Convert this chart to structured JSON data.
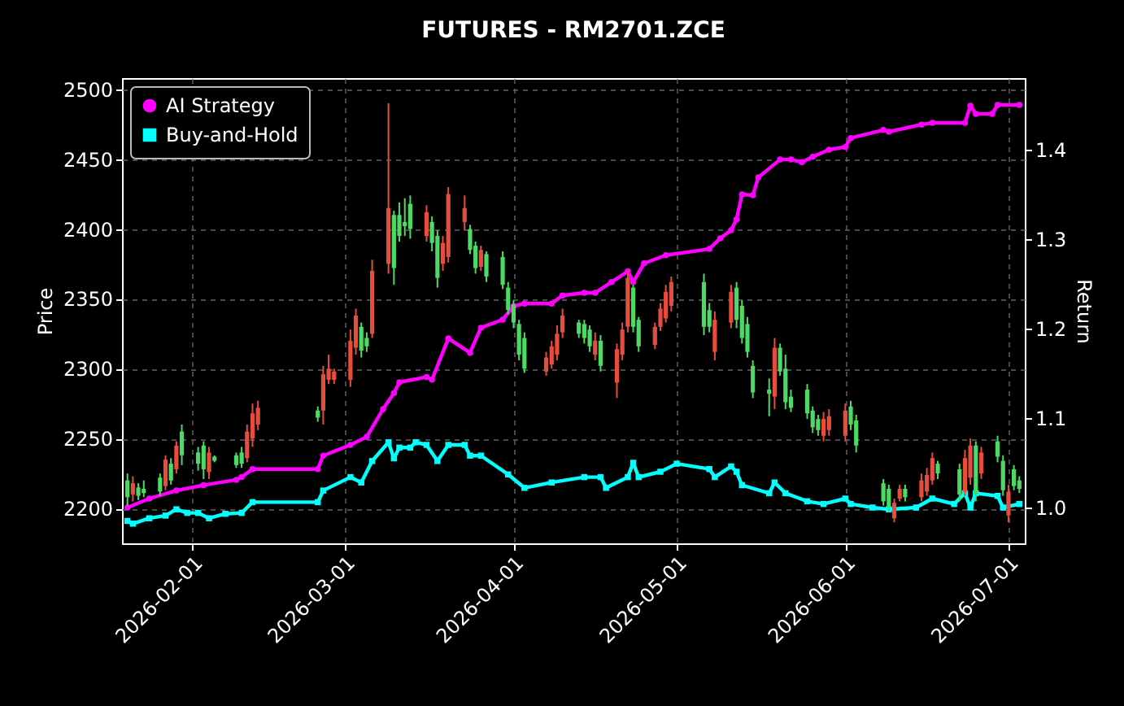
{
  "chart_data": {
    "type": "candlestick",
    "title": "FUTURES - RM2701.ZCE",
    "ylabel": "Price",
    "y2label": "Return",
    "x": [
      "2026-01-20",
      "2026-01-21",
      "2026-01-22",
      "2026-01-23",
      "2026-01-26",
      "2026-01-27",
      "2026-01-28",
      "2026-01-29",
      "2026-01-30",
      "2026-02-02",
      "2026-02-03",
      "2026-02-04",
      "2026-02-05",
      "2026-02-09",
      "2026-02-10",
      "2026-02-11",
      "2026-02-12",
      "2026-02-13",
      "2026-02-24",
      "2026-02-25",
      "2026-02-26",
      "2026-02-27",
      "2026-03-02",
      "2026-03-03",
      "2026-03-04",
      "2026-03-05",
      "2026-03-06",
      "2026-03-09",
      "2026-03-10",
      "2026-03-11",
      "2026-03-12",
      "2026-03-13",
      "2026-03-16",
      "2026-03-17",
      "2026-03-18",
      "2026-03-19",
      "2026-03-20",
      "2026-03-23",
      "2026-03-24",
      "2026-03-25",
      "2026-03-26",
      "2026-03-27",
      "2026-03-30",
      "2026-03-31",
      "2026-04-01",
      "2026-04-02",
      "2026-04-03",
      "2026-04-07",
      "2026-04-08",
      "2026-04-09",
      "2026-04-10",
      "2026-04-13",
      "2026-04-14",
      "2026-04-15",
      "2026-04-16",
      "2026-04-17",
      "2026-04-20",
      "2026-04-21",
      "2026-04-22",
      "2026-04-23",
      "2026-04-24",
      "2026-04-27",
      "2026-04-28",
      "2026-04-29",
      "2026-04-30",
      "2026-05-06",
      "2026-05-07",
      "2026-05-08",
      "2026-05-11",
      "2026-05-12",
      "2026-05-13",
      "2026-05-14",
      "2026-05-15",
      "2026-05-18",
      "2026-05-19",
      "2026-05-20",
      "2026-05-21",
      "2026-05-22",
      "2026-05-25",
      "2026-05-26",
      "2026-05-27",
      "2026-05-28",
      "2026-05-29",
      "2026-06-01",
      "2026-06-02",
      "2026-06-03",
      "2026-06-08",
      "2026-06-09",
      "2026-06-10",
      "2026-06-11",
      "2026-06-12",
      "2026-06-15",
      "2026-06-16",
      "2026-06-17",
      "2026-06-18",
      "2026-06-22",
      "2026-06-23",
      "2026-06-24",
      "2026-06-25",
      "2026-06-26",
      "2026-06-29",
      "2026-06-30",
      "2026-07-01",
      "2026-07-02",
      "2026-07-03"
    ],
    "ohlc": [
      [
        2220,
        2225,
        2202,
        2208
      ],
      [
        2210,
        2223,
        2205,
        2218
      ],
      [
        2215,
        2218,
        2206,
        2209
      ],
      [
        2214,
        2220,
        2208,
        2211
      ],
      [
        2222,
        2225,
        2209,
        2212
      ],
      [
        2216,
        2238,
        2213,
        2235
      ],
      [
        2232,
        2236,
        2217,
        2220
      ],
      [
        2228,
        2248,
        2225,
        2245
      ],
      [
        2255,
        2260,
        2231,
        2238
      ],
      [
        2240,
        2244,
        2227,
        2232
      ],
      [
        2245,
        2248,
        2221,
        2228
      ],
      [
        2226,
        2244,
        2221,
        2240
      ],
      [
        2237,
        2238,
        2233,
        2234
      ],
      [
        2238,
        2240,
        2229,
        2231
      ],
      [
        2240,
        2244,
        2229,
        2232
      ],
      [
        2236,
        2260,
        2233,
        2255
      ],
      [
        2250,
        2275,
        2244,
        2268
      ],
      [
        2260,
        2277,
        2256,
        2272
      ],
      [
        2270,
        2273,
        2262,
        2265
      ],
      [
        2270,
        2302,
        2260,
        2296
      ],
      [
        2292,
        2310,
        2289,
        2300
      ],
      [
        2292,
        2300,
        2289,
        2298
      ],
      [
        2292,
        2328,
        2287,
        2320
      ],
      [
        2315,
        2343,
        2310,
        2338
      ],
      [
        2330,
        2333,
        2308,
        2313
      ],
      [
        2322,
        2326,
        2312,
        2316
      ],
      [
        2325,
        2378,
        2322,
        2370
      ],
      [
        2375,
        2490,
        2368,
        2415
      ],
      [
        2410,
        2413,
        2360,
        2372
      ],
      [
        2410,
        2419,
        2391,
        2395
      ],
      [
        2405,
        2422,
        2395,
        2402
      ],
      [
        2418,
        2424,
        2393,
        2400
      ],
      [
        2395,
        2417,
        2391,
        2412
      ],
      [
        2405,
        2409,
        2384,
        2390
      ],
      [
        2395,
        2399,
        2358,
        2365
      ],
      [
        2375,
        2395,
        2370,
        2390
      ],
      [
        2380,
        2430,
        2376,
        2425
      ],
      [
        2405,
        2424,
        2399,
        2415
      ],
      [
        2400,
        2403,
        2382,
        2385
      ],
      [
        2388,
        2391,
        2368,
        2372
      ],
      [
        2373,
        2388,
        2370,
        2385
      ],
      [
        2382,
        2384,
        2362,
        2366
      ],
      [
        2380,
        2384,
        2357,
        2360
      ],
      [
        2358,
        2362,
        2339,
        2342
      ],
      [
        2346,
        2349,
        2329,
        2333
      ],
      [
        2332,
        2335,
        2306,
        2310
      ],
      [
        2322,
        2326,
        2297,
        2300
      ],
      [
        2298,
        2312,
        2295,
        2308
      ],
      [
        2303,
        2320,
        2300,
        2316
      ],
      [
        2310,
        2331,
        2306,
        2325
      ],
      [
        2326,
        2343,
        2322,
        2338
      ],
      [
        2333,
        2335,
        2322,
        2325
      ],
      [
        2332,
        2335,
        2318,
        2322
      ],
      [
        2328,
        2331,
        2312,
        2316
      ],
      [
        2310,
        2326,
        2306,
        2320
      ],
      [
        2320,
        2324,
        2298,
        2302
      ],
      [
        2290,
        2318,
        2279,
        2314
      ],
      [
        2310,
        2333,
        2306,
        2328
      ],
      [
        2330,
        2370,
        2326,
        2365
      ],
      [
        2358,
        2360,
        2326,
        2330
      ],
      [
        2335,
        2337,
        2312,
        2316
      ],
      [
        2317,
        2333,
        2314,
        2330
      ],
      [
        2330,
        2347,
        2327,
        2343
      ],
      [
        2336,
        2360,
        2333,
        2355
      ],
      [
        2345,
        2366,
        2341,
        2362
      ],
      [
        2362,
        2368,
        2324,
        2330
      ],
      [
        2342,
        2347,
        2326,
        2330
      ],
      [
        2312,
        2341,
        2306,
        2335
      ],
      [
        2333,
        2360,
        2329,
        2355
      ],
      [
        2358,
        2362,
        2329,
        2335
      ],
      [
        2345,
        2349,
        2318,
        2322
      ],
      [
        2332,
        2337,
        2308,
        2312
      ],
      [
        2302,
        2306,
        2279,
        2283
      ],
      [
        2285,
        2293,
        2266,
        2282
      ],
      [
        2280,
        2322,
        2271,
        2315
      ],
      [
        2315,
        2318,
        2295,
        2298
      ],
      [
        2300,
        2310,
        2271,
        2276
      ],
      [
        2280,
        2285,
        2269,
        2272
      ],
      [
        2285,
        2289,
        2264,
        2268
      ],
      [
        2270,
        2273,
        2254,
        2258
      ],
      [
        2264,
        2267,
        2252,
        2256
      ],
      [
        2252,
        2269,
        2248,
        2264
      ],
      [
        2256,
        2271,
        2252,
        2266
      ],
      [
        2252,
        2275,
        2248,
        2270
      ],
      [
        2273,
        2277,
        2256,
        2260
      ],
      [
        2263,
        2267,
        2240,
        2245
      ],
      [
        2218,
        2221,
        2202,
        2205
      ],
      [
        2214,
        2217,
        2198,
        2201
      ],
      [
        2193,
        2207,
        2190,
        2204
      ],
      [
        2207,
        2217,
        2205,
        2214
      ],
      [
        2214,
        2217,
        2205,
        2208
      ],
      [
        2208,
        2225,
        2205,
        2220
      ],
      [
        2212,
        2229,
        2209,
        2224
      ],
      [
        2220,
        2240,
        2217,
        2236
      ],
      [
        2232,
        2234,
        2221,
        2225
      ],
      [
        2228,
        2232,
        2205,
        2210
      ],
      [
        2212,
        2242,
        2209,
        2236
      ],
      [
        2222,
        2250,
        2217,
        2245
      ],
      [
        2245,
        2248,
        2205,
        2210
      ],
      [
        2225,
        2244,
        2221,
        2240
      ],
      [
        2248,
        2252,
        2233,
        2237
      ],
      [
        2234,
        2238,
        2209,
        2213
      ],
      [
        2195,
        2217,
        2190,
        2212
      ],
      [
        2228,
        2231,
        2213,
        2216
      ],
      [
        2220,
        2223,
        2211,
        2214
      ]
    ],
    "colors": [
      "#4cd964",
      "#e74c3c",
      "#4cd964",
      "#4cd964",
      "#4cd964",
      "#e74c3c",
      "#4cd964",
      "#e74c3c",
      "#4cd964",
      "#4cd964",
      "#4cd964",
      "#e74c3c",
      "#4cd964",
      "#4cd964",
      "#4cd964",
      "#e74c3c",
      "#e74c3c",
      "#e74c3c",
      "#4cd964",
      "#e74c3c",
      "#e74c3c",
      "#e74c3c",
      "#e74c3c",
      "#e74c3c",
      "#4cd964",
      "#4cd964",
      "#e74c3c",
      "#e74c3c",
      "#4cd964",
      "#4cd964",
      "#4cd964",
      "#4cd964",
      "#e74c3c",
      "#4cd964",
      "#4cd964",
      "#e74c3c",
      "#e74c3c",
      "#e74c3c",
      "#4cd964",
      "#4cd964",
      "#e74c3c",
      "#4cd964",
      "#4cd964",
      "#4cd964",
      "#4cd964",
      "#4cd964",
      "#4cd964",
      "#e74c3c",
      "#e74c3c",
      "#e74c3c",
      "#e74c3c",
      "#4cd964",
      "#4cd964",
      "#4cd964",
      "#e74c3c",
      "#4cd964",
      "#e74c3c",
      "#e74c3c",
      "#e74c3c",
      "#4cd964",
      "#4cd964",
      "#e74c3c",
      "#e74c3c",
      "#e74c3c",
      "#e74c3c",
      "#4cd964",
      "#4cd964",
      "#e74c3c",
      "#e74c3c",
      "#4cd964",
      "#4cd964",
      "#4cd964",
      "#4cd964",
      "#4cd964",
      "#e74c3c",
      "#4cd964",
      "#4cd964",
      "#4cd964",
      "#4cd964",
      "#4cd964",
      "#4cd964",
      "#e74c3c",
      "#e74c3c",
      "#e74c3c",
      "#4cd964",
      "#4cd964",
      "#4cd964",
      "#4cd964",
      "#e74c3c",
      "#e74c3c",
      "#4cd964",
      "#e74c3c",
      "#e74c3c",
      "#e74c3c",
      "#4cd964",
      "#4cd964",
      "#e74c3c",
      "#e74c3c",
      "#4cd964",
      "#e74c3c",
      "#4cd964",
      "#4cd964",
      "#e74c3c",
      "#4cd964",
      "#4cd964"
    ],
    "series": [
      {
        "name": "AI Strategy",
        "type": "line",
        "axis": "y2",
        "color": "#ff00ff",
        "marker": "circle",
        "x": [
          "2026-01-20",
          "2026-01-24",
          "2026-01-29",
          "2026-02-03",
          "2026-02-09",
          "2026-02-10",
          "2026-02-12",
          "2026-02-24",
          "2026-02-25",
          "2026-03-02",
          "2026-03-05",
          "2026-03-08",
          "2026-03-10",
          "2026-03-11",
          "2026-03-16",
          "2026-03-17",
          "2026-03-20",
          "2026-03-24",
          "2026-03-26",
          "2026-03-30",
          "2026-04-01",
          "2026-04-03",
          "2026-04-08",
          "2026-04-10",
          "2026-04-14",
          "2026-04-16",
          "2026-04-19",
          "2026-04-22",
          "2026-04-23",
          "2026-04-25",
          "2026-04-29",
          "2026-05-07",
          "2026-05-09",
          "2026-05-11",
          "2026-05-12",
          "2026-05-13",
          "2026-05-15",
          "2026-05-16",
          "2026-05-20",
          "2026-05-22",
          "2026-05-24",
          "2026-05-26",
          "2026-05-29",
          "2026-06-01",
          "2026-06-02",
          "2026-06-08",
          "2026-06-09",
          "2026-06-15",
          "2026-06-17",
          "2026-06-23",
          "2026-06-24",
          "2026-06-25",
          "2026-06-28",
          "2026-06-29",
          "2026-07-03"
        ],
        "values": [
          1.0,
          1.01,
          1.019,
          1.025,
          1.031,
          1.034,
          1.043,
          1.043,
          1.058,
          1.07,
          1.079,
          1.11,
          1.128,
          1.14,
          1.146,
          1.143,
          1.189,
          1.173,
          1.201,
          1.21,
          1.225,
          1.228,
          1.228,
          1.237,
          1.24,
          1.24,
          1.252,
          1.264,
          1.252,
          1.273,
          1.282,
          1.289,
          1.301,
          1.31,
          1.322,
          1.35,
          1.349,
          1.369,
          1.389,
          1.389,
          1.386,
          1.392,
          1.4,
          1.403,
          1.413,
          1.422,
          1.42,
          1.428,
          1.43,
          1.43,
          1.449,
          1.44,
          1.44,
          1.45,
          1.45
        ]
      },
      {
        "name": "Buy-and-Hold",
        "type": "line",
        "axis": "y2",
        "color": "#00ffff",
        "marker": "square",
        "x": [
          "2026-01-20",
          "2026-01-21",
          "2026-01-24",
          "2026-01-27",
          "2026-01-29",
          "2026-01-31",
          "2026-02-02",
          "2026-02-04",
          "2026-02-07",
          "2026-02-10",
          "2026-02-12",
          "2026-02-24",
          "2026-02-25",
          "2026-03-02",
          "2026-03-04",
          "2026-03-06",
          "2026-03-09",
          "2026-03-10",
          "2026-03-11",
          "2026-03-13",
          "2026-03-14",
          "2026-03-16",
          "2026-03-18",
          "2026-03-20",
          "2026-03-23",
          "2026-03-24",
          "2026-03-26",
          "2026-03-31",
          "2026-04-03",
          "2026-04-08",
          "2026-04-14",
          "2026-04-17",
          "2026-04-18",
          "2026-04-22",
          "2026-04-23",
          "2026-04-24",
          "2026-04-28",
          "2026-05-01",
          "2026-05-07",
          "2026-05-08",
          "2026-05-11",
          "2026-05-12",
          "2026-05-13",
          "2026-05-18",
          "2026-05-19",
          "2026-05-21",
          "2026-05-25",
          "2026-05-28",
          "2026-06-01",
          "2026-06-02",
          "2026-06-06",
          "2026-06-09",
          "2026-06-14",
          "2026-06-17",
          "2026-06-21",
          "2026-06-23",
          "2026-06-24",
          "2026-06-25",
          "2026-06-29",
          "2026-06-30",
          "2026-07-03"
        ],
        "values": [
          0.985,
          0.982,
          0.988,
          0.991,
          0.998,
          0.994,
          0.994,
          0.988,
          0.993,
          0.994,
          1.006,
          1.006,
          1.019,
          1.034,
          1.028,
          1.052,
          1.073,
          1.055,
          1.067,
          1.067,
          1.073,
          1.07,
          1.052,
          1.07,
          1.07,
          1.058,
          1.058,
          1.037,
          1.022,
          1.028,
          1.034,
          1.034,
          1.022,
          1.034,
          1.05,
          1.034,
          1.04,
          1.049,
          1.043,
          1.034,
          1.046,
          1.04,
          1.025,
          1.016,
          1.028,
          1.016,
          1.007,
          1.004,
          1.01,
          1.004,
          1.0,
          0.998,
          1.0,
          1.01,
          1.004,
          1.016,
          1.0,
          1.016,
          1.013,
          1.0,
          1.004
        ]
      }
    ],
    "xlim": [
      "2026-01-19",
      "2026-07-04"
    ],
    "xticks": [
      "2026-02-01",
      "2026-03-01",
      "2026-04-01",
      "2026-05-01",
      "2026-06-01",
      "2026-07-01"
    ],
    "ylim": [
      2175,
      2508
    ],
    "yticks": [
      2200,
      2250,
      2300,
      2350,
      2400,
      2450,
      2500
    ],
    "y2lim": [
      0.96,
      1.48
    ],
    "y2ticks": [
      {
        "value": 1.0,
        "label": "1.0"
      },
      {
        "value": 1.1,
        "label": "1.1"
      },
      {
        "value": 1.2,
        "label": "1.2"
      },
      {
        "value": 1.3,
        "label": "1.3"
      },
      {
        "value": 1.4,
        "label": "1.4"
      }
    ],
    "grid": true,
    "legend": "top left"
  }
}
